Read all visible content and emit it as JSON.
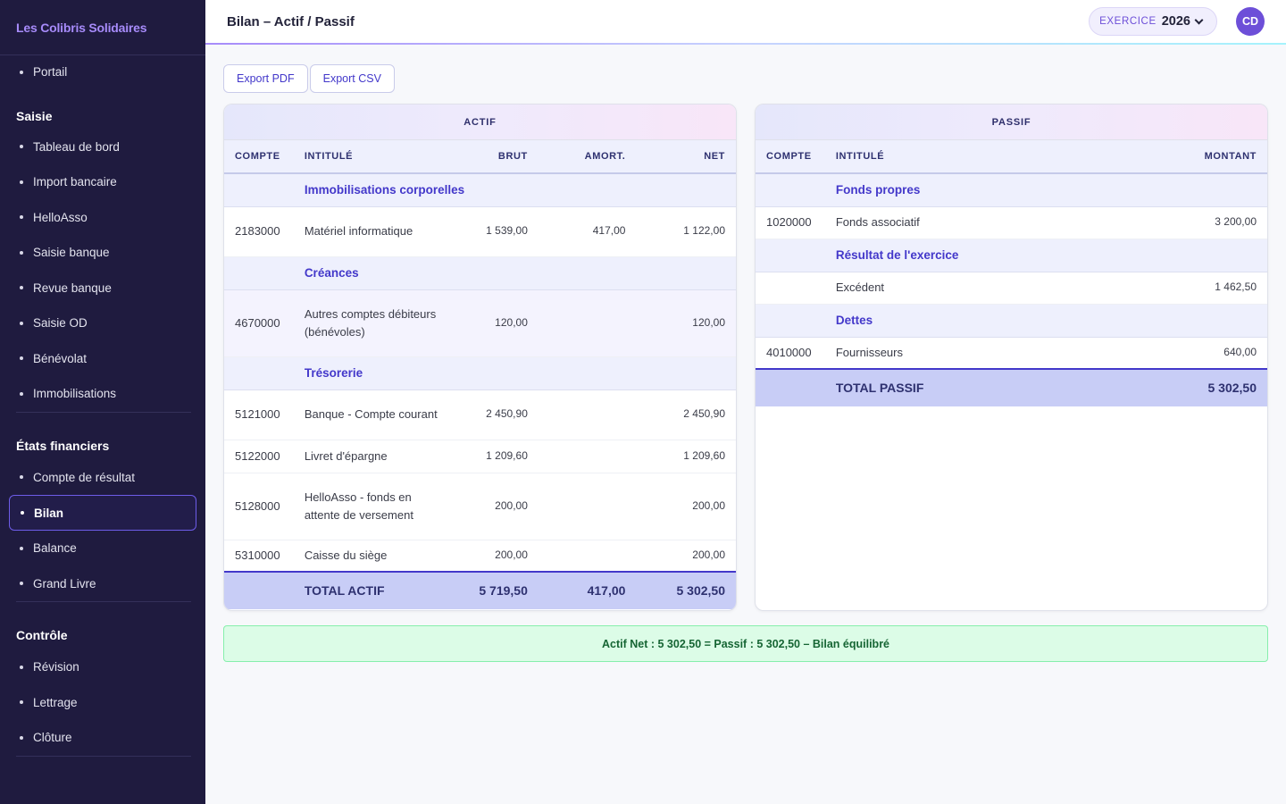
{
  "brand": "Les Colibris Solidaires",
  "nav": {
    "portail": "Portail",
    "saisie": {
      "title": "Saisie",
      "items": [
        "Tableau de bord",
        "Import bancaire",
        "HelloAsso",
        "Saisie banque",
        "Revue banque",
        "Saisie OD",
        "Bénévolat",
        "Immobilisations"
      ]
    },
    "etats": {
      "title": "États financiers",
      "items": [
        "Compte de résultat",
        "Bilan",
        "Balance",
        "Grand Livre"
      ]
    },
    "controle": {
      "title": "Contrôle",
      "items": [
        "Révision",
        "Lettrage",
        "Clôture"
      ]
    }
  },
  "header": {
    "title": "Bilan – Actif / Passif",
    "exercice_label": "EXERCICE",
    "exercice_value": "2026",
    "avatar": "CD"
  },
  "toolbar": {
    "export_pdf": "Export PDF",
    "export_csv": "Export CSV"
  },
  "actif": {
    "title": "ACTIF",
    "headers": [
      "COMPTE",
      "INTITULÉ",
      "BRUT",
      "AMORT.",
      "NET"
    ],
    "sections": [
      {
        "label": "Immobilisations corporelles",
        "rows": [
          {
            "compte": "2183000",
            "intitule": "Matériel informatique",
            "brut": "1 539,00",
            "amort": "417,00",
            "net": "1 122,00"
          }
        ]
      },
      {
        "label": "Créances",
        "rows": [
          {
            "compte": "4670000",
            "intitule": "Autres comptes débiteurs (bénévoles)",
            "brut": "120,00",
            "amort": "",
            "net": "120,00"
          }
        ]
      },
      {
        "label": "Trésorerie",
        "rows": [
          {
            "compte": "5121000",
            "intitule": "Banque - Compte courant",
            "brut": "2 450,90",
            "amort": "",
            "net": "2 450,90"
          },
          {
            "compte": "5122000",
            "intitule": "Livret d'épargne",
            "brut": "1 209,60",
            "amort": "",
            "net": "1 209,60"
          },
          {
            "compte": "5128000",
            "intitule": "HelloAsso - fonds en attente de versement",
            "brut": "200,00",
            "amort": "",
            "net": "200,00"
          },
          {
            "compte": "5310000",
            "intitule": "Caisse du siège",
            "brut": "200,00",
            "amort": "",
            "net": "200,00"
          }
        ]
      }
    ],
    "total": {
      "label": "TOTAL ACTIF",
      "brut": "5 719,50",
      "amort": "417,00",
      "net": "5 302,50"
    }
  },
  "passif": {
    "title": "PASSIF",
    "headers": [
      "COMPTE",
      "INTITULÉ",
      "MONTANT"
    ],
    "sections": [
      {
        "label": "Fonds propres",
        "rows": [
          {
            "compte": "1020000",
            "intitule": "Fonds associatif",
            "montant": "3 200,00"
          }
        ]
      },
      {
        "label": "Résultat de l'exercice",
        "rows": [
          {
            "compte": "",
            "intitule": "Excédent",
            "montant": "1 462,50"
          }
        ]
      },
      {
        "label": "Dettes",
        "rows": [
          {
            "compte": "4010000",
            "intitule": "Fournisseurs",
            "montant": "640,00"
          }
        ]
      }
    ],
    "total": {
      "label": "TOTAL PASSIF",
      "montant": "5 302,50"
    }
  },
  "banner": "Actif Net : 5 302,50 = Passif : 5 302,50 – Bilan équilibré"
}
